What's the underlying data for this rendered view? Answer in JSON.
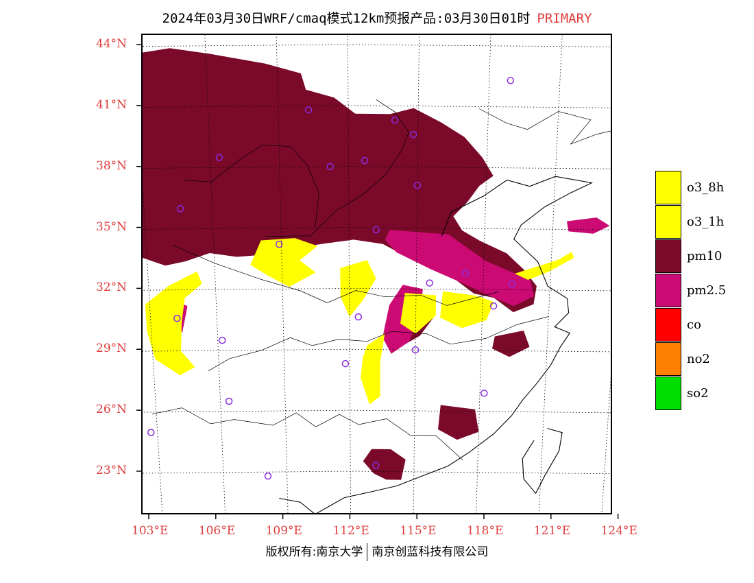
{
  "title": {
    "text": "2024年03月30日WRF/cmaq模式12km预报产品:03月30日01时",
    "flag": "PRIMARY"
  },
  "axes": {
    "lat_labels": [
      "44°N",
      "41°N",
      "38°N",
      "35°N",
      "32°N",
      "29°N",
      "26°N",
      "23°N"
    ],
    "lon_labels": [
      "103°E",
      "106°E",
      "109°E",
      "112°E",
      "115°E",
      "118°E",
      "121°E",
      "124°E"
    ],
    "label_color": "#e03a3a"
  },
  "legend": [
    {
      "label": "o3_8h",
      "color": "#ffff00"
    },
    {
      "label": "o3_1h",
      "color": "#ffff00"
    },
    {
      "label": "pm10",
      "color": "#7b0a2a"
    },
    {
      "label": "pm2.5",
      "color": "#cc0a74"
    },
    {
      "label": "co",
      "color": "#ff0000"
    },
    {
      "label": "no2",
      "color": "#ff7f00"
    },
    {
      "label": "so2",
      "color": "#00dd00"
    }
  ],
  "footer": {
    "left": "版权所有:南京大学",
    "right": "南京创蓝科技有限公司"
  },
  "stations": [
    {
      "name": "",
      "lon": 118.9,
      "lat": 42.3
    },
    {
      "name": "",
      "lon": 110.3,
      "lat": 40.8
    },
    {
      "name": "",
      "lon": 114.0,
      "lat": 40.3
    },
    {
      "name": "",
      "lon": 114.8,
      "lat": 39.6
    },
    {
      "name": "",
      "lon": 106.4,
      "lat": 38.5
    },
    {
      "name": "",
      "lon": 111.2,
      "lat": 38.0
    },
    {
      "name": "",
      "lon": 112.7,
      "lat": 38.3
    },
    {
      "name": "",
      "lon": 115.0,
      "lat": 37.1
    },
    {
      "name": "",
      "lon": 104.6,
      "lat": 36.0
    },
    {
      "name": "",
      "lon": 113.2,
      "lat": 34.9
    },
    {
      "name": "",
      "lon": 108.9,
      "lat": 34.2
    },
    {
      "name": "",
      "lon": 117.2,
      "lat": 32.8
    },
    {
      "name": "",
      "lon": 119.3,
      "lat": 32.3
    },
    {
      "name": "",
      "lon": 115.6,
      "lat": 32.3
    },
    {
      "name": "",
      "lon": 118.5,
      "lat": 31.2
    },
    {
      "name": "",
      "lon": 104.2,
      "lat": 30.6
    },
    {
      "name": "",
      "lon": 112.4,
      "lat": 30.6
    },
    {
      "name": "",
      "lon": 106.2,
      "lat": 29.5
    },
    {
      "name": "",
      "lon": 115.0,
      "lat": 29.0
    },
    {
      "name": "",
      "lon": 111.8,
      "lat": 28.3
    },
    {
      "name": "",
      "lon": 106.4,
      "lat": 26.5
    },
    {
      "name": "",
      "lon": 118.2,
      "lat": 26.9
    },
    {
      "name": "",
      "lon": 102.7,
      "lat": 25.0
    },
    {
      "name": "",
      "lon": 113.2,
      "lat": 23.3
    },
    {
      "name": "",
      "lon": 108.1,
      "lat": 22.8
    }
  ],
  "pollution_areas": [
    {
      "pollutant": "pm10",
      "lonlat": [
        [
          102.8,
          43.6
        ],
        [
          104.5,
          43.9
        ],
        [
          106.2,
          43.6
        ],
        [
          108.5,
          43.1
        ],
        [
          110.0,
          42.6
        ],
        [
          110.2,
          41.8
        ],
        [
          111.4,
          41.4
        ],
        [
          112.3,
          40.6
        ],
        [
          113.8,
          40.6
        ],
        [
          114.8,
          40.9
        ],
        [
          116.0,
          40.2
        ],
        [
          117.0,
          39.5
        ],
        [
          117.8,
          38.5
        ],
        [
          118.3,
          37.6
        ],
        [
          117.7,
          37.1
        ],
        [
          117.2,
          36.3
        ],
        [
          116.6,
          35.6
        ],
        [
          117.0,
          34.9
        ],
        [
          117.8,
          34.4
        ],
        [
          119.0,
          33.8
        ],
        [
          119.8,
          33.0
        ],
        [
          120.4,
          32.2
        ],
        [
          120.3,
          31.3
        ],
        [
          119.4,
          30.9
        ],
        [
          118.5,
          31.6
        ],
        [
          117.6,
          31.8
        ],
        [
          116.6,
          32.6
        ],
        [
          115.6,
          33.1
        ],
        [
          114.7,
          33.5
        ],
        [
          113.5,
          34.2
        ],
        [
          112.2,
          34.4
        ],
        [
          110.8,
          34.2
        ],
        [
          109.6,
          34.0
        ],
        [
          108.3,
          33.7
        ],
        [
          107.0,
          33.6
        ],
        [
          105.8,
          33.8
        ],
        [
          104.7,
          33.4
        ],
        [
          103.8,
          33.2
        ],
        [
          102.8,
          33.6
        ]
      ]
    },
    {
      "pollutant": "pm10",
      "lonlat": [
        [
          113.9,
          24.1
        ],
        [
          114.6,
          23.6
        ],
        [
          114.4,
          22.6
        ],
        [
          113.7,
          22.6
        ],
        [
          113.1,
          22.9
        ],
        [
          112.6,
          23.5
        ],
        [
          113.0,
          24.1
        ]
      ]
    },
    {
      "pollutant": "pm10",
      "lonlat": [
        [
          116.2,
          26.3
        ],
        [
          117.8,
          26.1
        ],
        [
          118.0,
          25.0
        ],
        [
          117.0,
          24.6
        ],
        [
          116.1,
          25.1
        ]
      ]
    },
    {
      "pollutant": "pm10",
      "lonlat": [
        [
          118.6,
          29.7
        ],
        [
          119.9,
          30.0
        ],
        [
          120.2,
          29.2
        ],
        [
          119.3,
          28.7
        ],
        [
          118.5,
          29.1
        ]
      ]
    },
    {
      "pollutant": "pm10",
      "lonlat": [
        [
          114.0,
          30.8
        ],
        [
          115.3,
          31.3
        ],
        [
          115.8,
          30.6
        ],
        [
          115.2,
          29.7
        ],
        [
          114.4,
          29.2
        ],
        [
          113.8,
          29.8
        ]
      ]
    },
    {
      "pollutant": "pm2.5",
      "lonlat": [
        [
          113.8,
          34.9
        ],
        [
          116.4,
          34.7
        ],
        [
          118.1,
          33.4
        ],
        [
          120.1,
          32.5
        ],
        [
          120.3,
          31.7
        ],
        [
          119.4,
          31.2
        ],
        [
          118.3,
          31.7
        ],
        [
          117.1,
          32.3
        ],
        [
          115.6,
          33.0
        ],
        [
          114.1,
          33.8
        ],
        [
          113.6,
          34.4
        ]
      ]
    },
    {
      "pollutant": "pm2.5",
      "lonlat": [
        [
          114.4,
          32.2
        ],
        [
          115.3,
          32.0
        ],
        [
          115.2,
          30.7
        ],
        [
          114.7,
          29.4
        ],
        [
          113.9,
          28.8
        ],
        [
          113.5,
          29.6
        ],
        [
          113.8,
          31.2
        ]
      ]
    },
    {
      "pollutant": "pm2.5",
      "lonlat": [
        [
          121.6,
          35.4
        ],
        [
          122.9,
          35.6
        ],
        [
          123.5,
          35.2
        ],
        [
          122.8,
          34.8
        ],
        [
          121.7,
          34.9
        ]
      ]
    },
    {
      "pollutant": "pm2.5",
      "lonlat": [
        [
          104.1,
          31.5
        ],
        [
          104.7,
          31.2
        ],
        [
          104.4,
          29.9
        ],
        [
          103.9,
          30.2
        ]
      ]
    },
    {
      "pollutant": "o3",
      "lonlat": [
        [
          108.1,
          34.4
        ],
        [
          109.6,
          34.5
        ],
        [
          110.6,
          34.1
        ],
        [
          109.8,
          33.4
        ],
        [
          110.5,
          32.8
        ],
        [
          109.3,
          32.1
        ],
        [
          108.3,
          32.7
        ],
        [
          107.6,
          33.2
        ]
      ]
    },
    {
      "pollutant": "o3",
      "lonlat": [
        [
          102.8,
          31.3
        ],
        [
          103.9,
          32.2
        ],
        [
          105.2,
          32.9
        ],
        [
          105.4,
          32.3
        ],
        [
          104.6,
          31.6
        ],
        [
          104.4,
          30.4
        ],
        [
          104.3,
          29.0
        ],
        [
          104.9,
          28.2
        ],
        [
          104.2,
          27.8
        ],
        [
          103.1,
          28.6
        ],
        [
          102.8,
          30.0
        ]
      ]
    },
    {
      "pollutant": "o3",
      "lonlat": [
        [
          111.6,
          33.0
        ],
        [
          112.8,
          33.4
        ],
        [
          113.2,
          32.5
        ],
        [
          112.6,
          31.4
        ],
        [
          112.0,
          30.6
        ],
        [
          111.6,
          31.6
        ]
      ]
    },
    {
      "pollutant": "o3",
      "lonlat": [
        [
          112.8,
          29.2
        ],
        [
          113.6,
          29.8
        ],
        [
          113.4,
          28.4
        ],
        [
          113.4,
          26.7
        ],
        [
          112.9,
          26.3
        ],
        [
          112.5,
          27.6
        ],
        [
          112.6,
          28.6
        ]
      ]
    },
    {
      "pollutant": "o3",
      "lonlat": [
        [
          114.5,
          31.8
        ],
        [
          115.9,
          31.7
        ],
        [
          115.9,
          30.7
        ],
        [
          115.0,
          29.8
        ],
        [
          114.3,
          30.3
        ]
      ]
    },
    {
      "pollutant": "o3",
      "lonlat": [
        [
          116.2,
          31.9
        ],
        [
          117.7,
          31.7
        ],
        [
          118.5,
          31.4
        ],
        [
          118.2,
          30.5
        ],
        [
          117.1,
          30.1
        ],
        [
          116.1,
          30.6
        ]
      ]
    },
    {
      "pollutant": "o3",
      "lonlat": [
        [
          119.4,
          32.8
        ],
        [
          121.3,
          33.5
        ],
        [
          121.9,
          33.9
        ],
        [
          122.0,
          33.6
        ],
        [
          120.9,
          32.9
        ],
        [
          120.0,
          32.5
        ]
      ]
    }
  ]
}
